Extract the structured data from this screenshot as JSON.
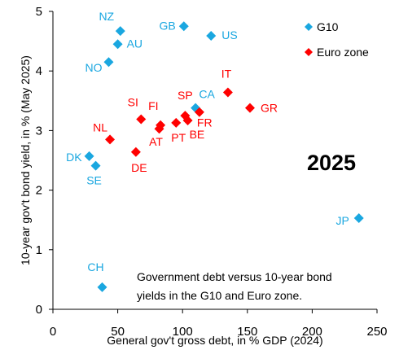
{
  "chart_data": {
    "type": "scatter",
    "xlabel": "General gov't gross debt, in % GDP (2024)",
    "ylabel": "10-year gov't bond yield, in % (May 2025)",
    "xlim": [
      0,
      250
    ],
    "ylim": [
      0,
      5
    ],
    "xticks": [
      "0",
      "50",
      "100",
      "150",
      "200",
      "250"
    ],
    "yticks": [
      "0",
      "1",
      "2",
      "3",
      "4",
      "5"
    ],
    "grid": false,
    "legend_position": "top-right",
    "year_label": "2025",
    "note": [
      "Government debt versus 10-year bond",
      "yields in the G10 and Euro zone."
    ],
    "series": [
      {
        "name": "G10",
        "color": "#1aa7e0",
        "marker": "diamond",
        "points": [
          {
            "label": "NZ",
            "x": 52,
            "y": 4.67
          },
          {
            "label": "AU",
            "x": 50,
            "y": 4.45
          },
          {
            "label": "NO",
            "x": 43,
            "y": 4.15
          },
          {
            "label": "GB",
            "x": 101,
            "y": 4.75
          },
          {
            "label": "US",
            "x": 122,
            "y": 4.59
          },
          {
            "label": "CA",
            "x": 110,
            "y": 3.38
          },
          {
            "label": "DK",
            "x": 28,
            "y": 2.57
          },
          {
            "label": "SE",
            "x": 33,
            "y": 2.41
          },
          {
            "label": "CH",
            "x": 38,
            "y": 0.37
          },
          {
            "label": "JP",
            "x": 236,
            "y": 1.53
          }
        ]
      },
      {
        "name": "Euro zone",
        "color": "#ff0000",
        "marker": "diamond",
        "points": [
          {
            "label": "IT",
            "x": 135,
            "y": 3.64
          },
          {
            "label": "GR",
            "x": 152,
            "y": 3.38
          },
          {
            "label": "SI",
            "x": 68,
            "y": 3.19
          },
          {
            "label": "FI",
            "x": 83,
            "y": 3.09
          },
          {
            "label": "AT",
            "x": 82,
            "y": 3.03
          },
          {
            "label": "SP",
            "x": 102,
            "y": 3.25
          },
          {
            "label": "FR",
            "x": 113,
            "y": 3.31
          },
          {
            "label": "PT",
            "x": 95,
            "y": 3.13
          },
          {
            "label": "BE",
            "x": 104,
            "y": 3.17
          },
          {
            "label": "NL",
            "x": 44,
            "y": 2.85
          },
          {
            "label": "DE",
            "x": 64,
            "y": 2.64
          }
        ]
      }
    ]
  }
}
